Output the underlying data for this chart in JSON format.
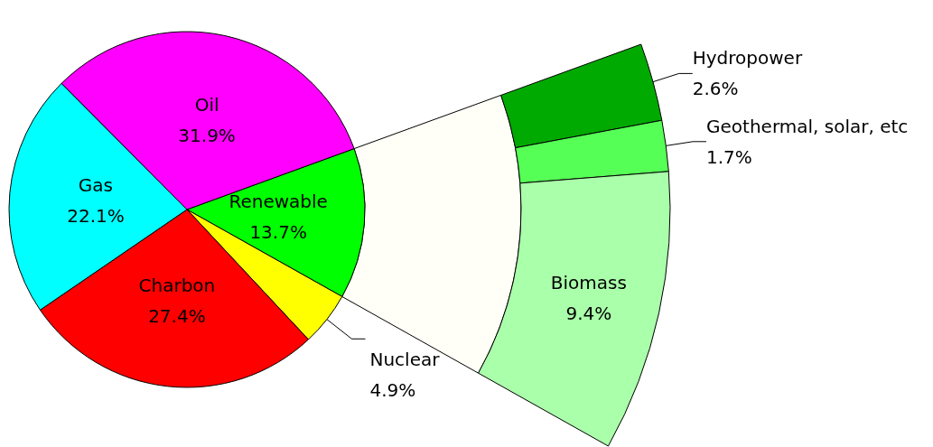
{
  "chart_data": [
    {
      "type": "pie",
      "categories": [
        "Renewable",
        "Nuclear",
        "Charbon",
        "Gas",
        "Oil"
      ],
      "values": [
        13.7,
        4.9,
        27.4,
        22.1,
        31.9
      ],
      "value_labels": [
        "13.7%",
        "4.9%",
        "27.4%",
        "22.1%",
        "31.9%"
      ],
      "colors": [
        "#00ff00",
        "#ffff00",
        "#ff0000",
        "#00ffff",
        "#ff00ff"
      ]
    },
    {
      "type": "donut",
      "categories": [
        "Hydropower",
        "Geothermal, solar, etc",
        "Biomass"
      ],
      "values": [
        2.6,
        1.7,
        9.4
      ],
      "value_labels": [
        "2.6%",
        "1.7%",
        "9.4%"
      ],
      "colors": [
        "#00aa00",
        "#55ff55",
        "#aaffaa"
      ]
    }
  ]
}
